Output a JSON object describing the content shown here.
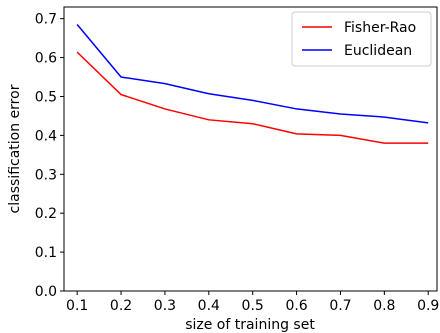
{
  "chart_data": {
    "type": "line",
    "title": "",
    "xlabel": "size of training set",
    "ylabel": "classification error",
    "x": [
      0.1,
      0.2,
      0.3,
      0.4,
      0.5,
      0.6,
      0.7,
      0.8,
      0.9
    ],
    "xlim": [
      0.07,
      0.92
    ],
    "ylim": [
      0.0,
      0.73
    ],
    "xticks": [
      "0.1",
      "0.2",
      "0.3",
      "0.4",
      "0.5",
      "0.6",
      "0.7",
      "0.8",
      "0.9"
    ],
    "yticks": [
      "0.0",
      "0.1",
      "0.2",
      "0.3",
      "0.4",
      "0.5",
      "0.6",
      "0.7"
    ],
    "grid": false,
    "legend_position": "top-right",
    "series": [
      {
        "name": "Fisher-Rao",
        "color": "#ff0000",
        "values": [
          0.614,
          0.505,
          0.468,
          0.44,
          0.43,
          0.404,
          0.4,
          0.38,
          0.38
        ]
      },
      {
        "name": "Euclidean",
        "color": "#0000ff",
        "values": [
          0.685,
          0.55,
          0.533,
          0.507,
          0.49,
          0.468,
          0.455,
          0.447,
          0.432
        ]
      }
    ]
  }
}
